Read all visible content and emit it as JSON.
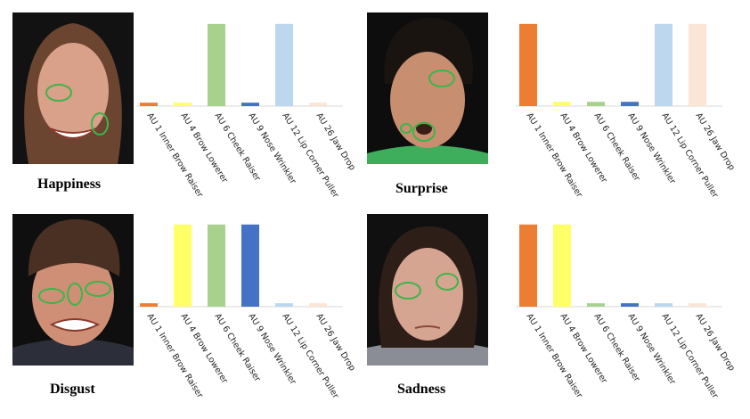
{
  "panels": [
    {
      "emotion": "Happiness",
      "face": {
        "skin": "#d9a08a",
        "hair": "#6b4530",
        "background": "#121212",
        "shirt": "#2a2a2a"
      },
      "chart_data": {
        "type": "bar",
        "categories": [
          "AU 1 Inner Brow Raiser",
          "AU 4 Brow Lowerer",
          "AU 6 Cheek Raiser",
          "AU 9 Nose Wrinkler",
          "AU 12 Lip Corner Puller",
          "AU 26 Jaw Drop"
        ],
        "values": [
          4,
          4,
          96,
          4,
          96,
          4
        ],
        "ylim": [
          0,
          100
        ],
        "grid": false,
        "legend": "none"
      }
    },
    {
      "emotion": "Surprise",
      "face": {
        "skin": "#c88e70",
        "hair": "#1a1410",
        "background": "#0d0d0d",
        "shirt": "#3fae5c"
      },
      "chart_data": {
        "type": "bar",
        "categories": [
          "AU 1 Inner Brow Raiser",
          "AU 4 Brow Lowerer",
          "AU 6 Cheek Raiser",
          "AU 9 Nose Wrinkler",
          "AU 12 Lip Corner Puller",
          "AU 26 Jaw Drop"
        ],
        "values": [
          96,
          5,
          5,
          5,
          96,
          96
        ],
        "ylim": [
          0,
          100
        ],
        "grid": false,
        "legend": "none"
      }
    },
    {
      "emotion": "Disgust",
      "face": {
        "skin": "#cf8f76",
        "hair": "#4a3022",
        "background": "#0f0f0f",
        "shirt": "#2c2f3a"
      },
      "chart_data": {
        "type": "bar",
        "categories": [
          "AU 1 Inner Brow Raiser",
          "AU 4 Brow Lowerer",
          "AU 6 Cheek Raiser",
          "AU 9 Nose Wrinkler",
          "AU 12 Lip Corner Puller",
          "AU 26 Jaw Drop"
        ],
        "values": [
          4,
          96,
          96,
          96,
          4,
          4
        ],
        "ylim": [
          0,
          100
        ],
        "grid": false,
        "legend": "none"
      }
    },
    {
      "emotion": "Sadness",
      "face": {
        "skin": "#d6a592",
        "hair": "#2e1e18",
        "background": "#101010",
        "shirt": "#8a8d96"
      },
      "chart_data": {
        "type": "bar",
        "categories": [
          "AU 1 Inner Brow Raiser",
          "AU 4 Brow Lowerer",
          "AU 6 Cheek Raiser",
          "AU 9 Nose Wrinkler",
          "AU 12 Lip Corner Puller",
          "AU 26 Jaw Drop"
        ],
        "values": [
          96,
          96,
          4,
          4,
          4,
          4
        ],
        "ylim": [
          0,
          100
        ],
        "grid": false,
        "legend": "none"
      }
    }
  ],
  "bar_colors": [
    "#ed7d31",
    "#ffff66",
    "#a9d18e",
    "#4472c4",
    "#bdd7ee",
    "#fbe5d6"
  ],
  "marker_color": "#3cb54a"
}
